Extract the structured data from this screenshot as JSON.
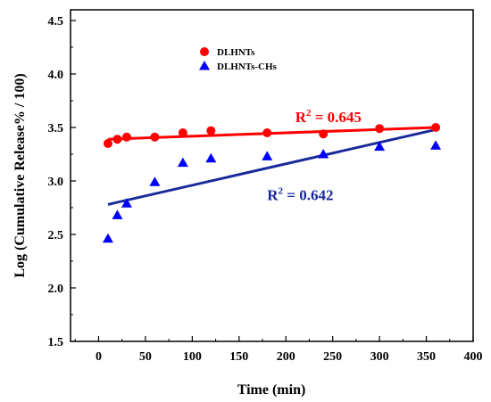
{
  "chart_data": {
    "type": "scatter",
    "xlabel": "Time (min)",
    "ylabel": "Log (Cumulative Release% / 100)",
    "xlim": [
      -30,
      400
    ],
    "ylim": [
      1.5,
      4.6
    ],
    "x_ticks": [
      0,
      50,
      100,
      150,
      200,
      250,
      300,
      350,
      400
    ],
    "y_ticks": [
      1.5,
      2.0,
      2.5,
      3.0,
      3.5,
      4.0,
      4.5
    ],
    "x_tick_labels": [
      "0",
      "50",
      "100",
      "150",
      "200",
      "250",
      "300",
      "350",
      "400"
    ],
    "y_tick_labels": [
      "1.5",
      "2.0",
      "2.5",
      "3.0",
      "3.5",
      "4.0",
      "4.5"
    ],
    "legend_position": "top-left",
    "series": [
      {
        "name": "DLHNTs",
        "marker": "circle",
        "color": "#ff0000",
        "x": [
          10,
          20,
          30,
          60,
          90,
          120,
          180,
          240,
          300,
          360
        ],
        "y": [
          3.35,
          3.39,
          3.41,
          3.41,
          3.45,
          3.47,
          3.45,
          3.44,
          3.49,
          3.5
        ],
        "fit": {
          "x": [
            10,
            360
          ],
          "y": [
            3.39,
            3.5
          ]
        },
        "annotation": {
          "prefix": "R",
          "superscript": "2",
          "value": " = 0.645",
          "x": 210,
          "y": 3.55
        }
      },
      {
        "name": "DLHNTs-CHs",
        "marker": "triangle",
        "color": "#0000ff",
        "fit_color": "#1a2a9a",
        "x": [
          10,
          20,
          30,
          60,
          90,
          120,
          180,
          240,
          300,
          360
        ],
        "y": [
          2.46,
          2.68,
          2.79,
          2.99,
          3.17,
          3.21,
          3.23,
          3.25,
          3.32,
          3.33
        ],
        "fit": {
          "x": [
            10,
            360
          ],
          "y": [
            2.78,
            3.48
          ]
        },
        "annotation": {
          "prefix": "R",
          "superscript": "2",
          "value": " = 0.642",
          "x": 180,
          "y": 2.82
        }
      }
    ]
  }
}
